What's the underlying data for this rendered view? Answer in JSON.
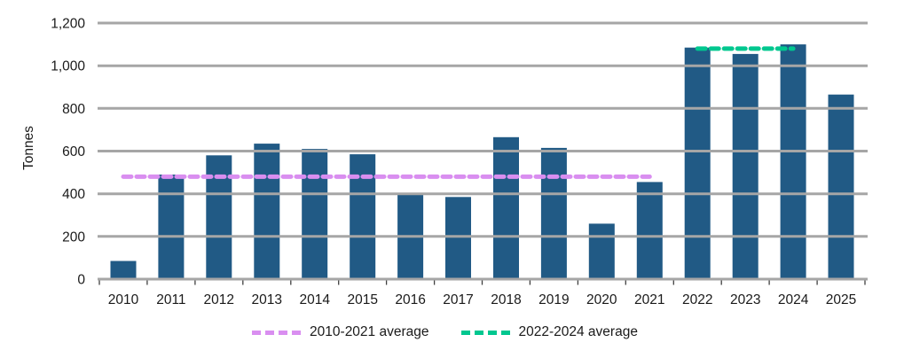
{
  "chart_data": {
    "type": "bar",
    "title": "",
    "xlabel": "",
    "ylabel": "Tonnes",
    "categories": [
      "2010",
      "2011",
      "2012",
      "2013",
      "2014",
      "2015",
      "2016",
      "2017",
      "2018",
      "2019",
      "2020",
      "2021",
      "2022",
      "2023",
      "2024",
      "2025"
    ],
    "values": [
      85,
      490,
      580,
      635,
      610,
      585,
      405,
      385,
      665,
      615,
      260,
      455,
      1085,
      1055,
      1100,
      865
    ],
    "ylim": [
      0,
      1200
    ],
    "ytick_values": [
      0,
      200,
      400,
      600,
      800,
      1000,
      1200
    ],
    "ytick_labels": [
      "0",
      "200",
      "400",
      "600",
      "800",
      "1,000",
      "1,200"
    ],
    "grid": true,
    "legend_position": "bottom",
    "colors": {
      "bar": "#215A85",
      "grid": "#A6A6A6",
      "axis": "#A6A6A6",
      "tick": "#404040",
      "text": "#1A1A1A",
      "background": "#FFFFFF"
    },
    "overlays": [
      {
        "name": "2010-2021 average",
        "value": 480,
        "from_category": "2010",
        "to_category": "2021",
        "style": "dashed",
        "color": "#D98EF0"
      },
      {
        "name": "2022-2024 average",
        "value": 1080,
        "from_category": "2022",
        "to_category": "2024",
        "style": "dashed",
        "color": "#00C78F"
      }
    ]
  }
}
